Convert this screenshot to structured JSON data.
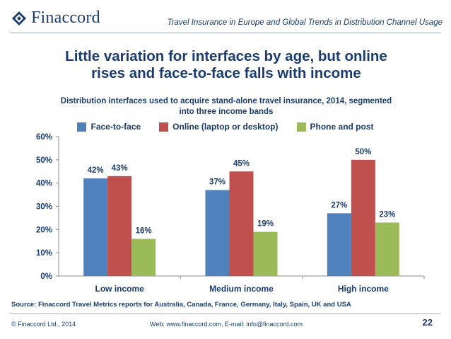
{
  "header": {
    "logo_text": "Finaccord",
    "title": "Travel Insurance in Europe and Global Trends in Distribution Channel Usage"
  },
  "headline": {
    "line1": "Little variation for interfaces by age, but online",
    "line2": "rises and face-to-face falls with income"
  },
  "subtitle": {
    "line1": "Distribution interfaces used to acquire stand-alone travel insurance, 2014, segmented",
    "line2": "into three income bands"
  },
  "chart_data": {
    "type": "bar",
    "categories": [
      "Low income",
      "Medium income",
      "High income"
    ],
    "series": [
      {
        "name": "Face-to-face",
        "color": "#4f81bd",
        "values": [
          42,
          37,
          27
        ],
        "labels": [
          "42%",
          "37%",
          "27%"
        ]
      },
      {
        "name": "Online (laptop or desktop)",
        "color": "#c0504d",
        "values": [
          43,
          45,
          50
        ],
        "labels": [
          "43%",
          "45%",
          "50%"
        ]
      },
      {
        "name": "Phone and post",
        "color": "#9bbb59",
        "values": [
          16,
          19,
          23
        ],
        "labels": [
          "16%",
          "19%",
          "23%"
        ]
      }
    ],
    "ylim": [
      0,
      60
    ],
    "yticks": [
      "0%",
      "10%",
      "20%",
      "30%",
      "40%",
      "50%",
      "60%"
    ],
    "legend_position": "top",
    "grid": false
  },
  "footer": {
    "source": "Source: Finaccord Travel Metrics reports for Australia, Canada, France, Germany, Italy, Spain, UK and USA",
    "copyright": "© Finaccord Ltd., 2014",
    "web": "Web: www.finaccord.com, E-mail: info@finaccord.com",
    "page_number": "22"
  },
  "colors": {
    "brand": "#1a3c6e"
  }
}
